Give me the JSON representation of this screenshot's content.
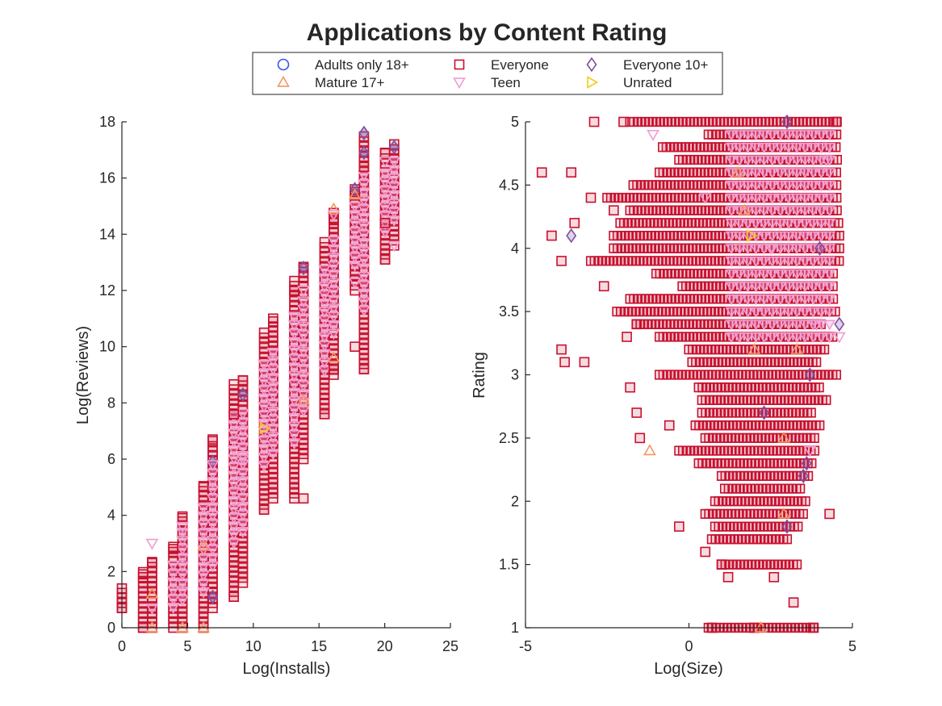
{
  "figure": {
    "title": "Applications by Content Rating"
  },
  "legend": {
    "placement": "top-center",
    "entries": [
      {
        "label": "Adults only 18+",
        "marker": "circle",
        "color": "#3355ee",
        "filled": false
      },
      {
        "label": "Everyone",
        "marker": "square",
        "color": "#c8102e",
        "filled": false
      },
      {
        "label": "Everyone 10+",
        "marker": "diamond",
        "color": "#7e4fa0",
        "filled": false
      },
      {
        "label": "Mature 17+",
        "marker": "triangle-up",
        "color": "#f4955a",
        "filled": false
      },
      {
        "label": "Teen",
        "marker": "triangle-down",
        "color": "#f29ad2",
        "filled": false
      },
      {
        "label": "Unrated",
        "marker": "triangle-right",
        "color": "#f2cc14",
        "filled": false
      }
    ]
  },
  "chart_data": [
    {
      "type": "scatter",
      "xlabel": "Log(Installs)",
      "ylabel": "Log(Reviews)",
      "xlim": [
        0,
        25
      ],
      "ylim": [
        0,
        18
      ],
      "xticks": [
        0,
        5,
        10,
        15,
        20,
        25
      ],
      "yticks": [
        0,
        2,
        4,
        6,
        8,
        10,
        12,
        14,
        16,
        18
      ],
      "grid": false,
      "x_columns": [
        0.0,
        1.61,
        2.3,
        3.91,
        4.61,
        6.21,
        6.91,
        8.52,
        9.21,
        10.82,
        11.51,
        13.12,
        13.82,
        15.42,
        16.12,
        17.73,
        18.42,
        20.03,
        20.72
      ],
      "column_ranges": [
        [
          0.7,
          1.4
        ],
        [
          0.0,
          2.0
        ],
        [
          0.0,
          2.4
        ],
        [
          0.0,
          2.9
        ],
        [
          0.0,
          4.0
        ],
        [
          0.0,
          5.1
        ],
        [
          0.7,
          6.7
        ],
        [
          1.1,
          8.8
        ],
        [
          1.6,
          8.9
        ],
        [
          4.2,
          10.5
        ],
        [
          4.6,
          11.0
        ],
        [
          4.6,
          12.5
        ],
        [
          6.0,
          12.9
        ],
        [
          7.6,
          13.8
        ],
        [
          9.0,
          14.9
        ],
        [
          12.0,
          15.6
        ],
        [
          9.2,
          17.6
        ],
        [
          13.1,
          17.0
        ],
        [
          13.6,
          17.2
        ]
      ],
      "series": [
        {
          "name": "Everyone",
          "points": [
            [
              0.0,
              0.7
            ],
            [
              0.0,
              1.4
            ],
            [
              1.61,
              0.0
            ],
            [
              1.61,
              1.9
            ],
            [
              2.3,
              2.3
            ],
            [
              2.3,
              0.7
            ],
            [
              3.91,
              2.8
            ],
            [
              4.61,
              3.9
            ],
            [
              6.21,
              5.0
            ],
            [
              6.91,
              6.7
            ],
            [
              8.52,
              1.1
            ],
            [
              8.52,
              7.6
            ],
            [
              9.21,
              8.8
            ],
            [
              10.82,
              4.2
            ],
            [
              11.51,
              11.0
            ],
            [
              13.12,
              12.0
            ],
            [
              13.82,
              4.6
            ],
            [
              13.82,
              12.8
            ],
            [
              15.42,
              7.6
            ],
            [
              16.12,
              9.2
            ],
            [
              16.12,
              14.5
            ],
            [
              17.73,
              10.0
            ],
            [
              17.73,
              15.5
            ],
            [
              18.42,
              9.2
            ],
            [
              18.42,
              16.4
            ],
            [
              20.03,
              13.1
            ],
            [
              20.03,
              14.4
            ],
            [
              20.03,
              16.9
            ]
          ]
        },
        {
          "name": "Everyone 10+",
          "points": [
            [
              6.91,
              1.1
            ],
            [
              6.91,
              5.9
            ],
            [
              9.21,
              8.3
            ],
            [
              13.82,
              12.8
            ],
            [
              17.73,
              15.6
            ],
            [
              18.42,
              17.6
            ],
            [
              18.42,
              16.9
            ],
            [
              20.72,
              17.1
            ]
          ]
        },
        {
          "name": "Mature 17+",
          "points": [
            [
              2.3,
              1.2
            ],
            [
              2.3,
              0.0
            ],
            [
              4.61,
              0.0
            ],
            [
              6.21,
              2.9
            ],
            [
              6.21,
              0.0
            ],
            [
              13.82,
              8.1
            ],
            [
              16.12,
              9.6
            ],
            [
              16.12,
              14.9
            ],
            [
              17.73,
              15.4
            ]
          ]
        },
        {
          "name": "Teen",
          "points": [
            [
              2.3,
              3.0
            ],
            [
              2.3,
              0.7
            ],
            [
              4.61,
              3.6
            ],
            [
              6.91,
              5.8
            ],
            [
              9.21,
              6.0
            ],
            [
              11.51,
              9.2
            ],
            [
              13.82,
              12.0
            ],
            [
              16.12,
              14.7
            ],
            [
              17.73,
              12.3
            ],
            [
              18.42,
              13.1
            ],
            [
              20.03,
              16.6
            ],
            [
              20.72,
              13.6
            ]
          ]
        },
        {
          "name": "Unrated",
          "points": [
            [
              10.82,
              7.1
            ]
          ]
        }
      ]
    },
    {
      "type": "scatter",
      "xlabel": "Log(Size)",
      "ylabel": "Rating",
      "xlim": [
        -5,
        5
      ],
      "ylim": [
        1,
        5
      ],
      "xticks": [
        -5,
        0,
        5
      ],
      "yticks": [
        1,
        1.5,
        2,
        2.5,
        3,
        3.5,
        4,
        4.5,
        5
      ],
      "grid": false,
      "series": [
        {
          "name": "Everyone",
          "points": [
            [
              -4.5,
              4.6
            ],
            [
              -3.6,
              4.6
            ],
            [
              -4.2,
              4.1
            ],
            [
              -3.9,
              3.9
            ],
            [
              -3.5,
              4.2
            ],
            [
              -3.0,
              4.4
            ],
            [
              -2.9,
              5.0
            ],
            [
              -2.6,
              3.7
            ],
            [
              -2.3,
              4.3
            ],
            [
              -2.0,
              5.0
            ],
            [
              -1.9,
              3.3
            ],
            [
              -1.8,
              2.9
            ],
            [
              -1.6,
              2.7
            ],
            [
              -1.5,
              2.5
            ],
            [
              -1.6,
              3.4
            ],
            [
              -3.9,
              3.2
            ],
            [
              -3.8,
              3.1
            ],
            [
              -3.2,
              3.1
            ],
            [
              -0.6,
              2.6
            ],
            [
              -0.3,
              1.8
            ],
            [
              0.5,
              1.6
            ],
            [
              0.7,
              1.0
            ],
            [
              1.0,
              1.5
            ],
            [
              1.2,
              1.4
            ],
            [
              2.0,
              1.0
            ],
            [
              2.6,
              1.4
            ],
            [
              3.2,
              1.2
            ],
            [
              3.8,
              1.0
            ],
            [
              4.3,
              1.9
            ],
            [
              4.5,
              5.0
            ]
          ]
        },
        {
          "name": "Everyone 10+",
          "points": [
            [
              -3.6,
              4.1
            ],
            [
              2.3,
              2.7
            ],
            [
              3.0,
              1.8
            ],
            [
              3.6,
              2.3
            ],
            [
              3.5,
              2.2
            ],
            [
              3.7,
              3.0
            ],
            [
              4.6,
              3.4
            ],
            [
              3.0,
              5.0
            ],
            [
              4.0,
              4.0
            ]
          ]
        },
        {
          "name": "Mature 17+",
          "points": [
            [
              -1.2,
              2.4
            ],
            [
              2.2,
              1.0
            ],
            [
              2.9,
              1.9
            ],
            [
              2.9,
              2.5
            ],
            [
              2.0,
              3.2
            ],
            [
              3.3,
              3.2
            ],
            [
              1.7,
              4.3
            ],
            [
              1.5,
              4.6
            ]
          ]
        },
        {
          "name": "Teen",
          "points": [
            [
              -1.1,
              4.9
            ],
            [
              3.7,
              2.4
            ],
            [
              3.9,
              3.4
            ],
            [
              4.6,
              3.3
            ],
            [
              0.5,
              4.4
            ],
            [
              2.5,
              4.0
            ],
            [
              4.2,
              4.7
            ]
          ]
        },
        {
          "name": "Unrated",
          "points": [
            [
              1.9,
              4.1
            ]
          ]
        }
      ],
      "everyone_rating_rows": [
        {
          "rating": 1.0,
          "from": 0.6,
          "to": 3.9
        },
        {
          "rating": 1.5,
          "from": 1.0,
          "to": 3.3
        },
        {
          "rating": 1.7,
          "from": 0.7,
          "to": 3.0
        },
        {
          "rating": 1.8,
          "from": 0.8,
          "to": 3.4
        },
        {
          "rating": 1.9,
          "from": 0.5,
          "to": 3.6
        },
        {
          "rating": 2.0,
          "from": 0.8,
          "to": 3.6
        },
        {
          "rating": 2.1,
          "from": 1.1,
          "to": 3.5
        },
        {
          "rating": 2.2,
          "from": 1.0,
          "to": 3.7
        },
        {
          "rating": 2.3,
          "from": 0.3,
          "to": 3.8
        },
        {
          "rating": 2.4,
          "from": -0.3,
          "to": 3.9
        },
        {
          "rating": 2.5,
          "from": 0.5,
          "to": 3.9
        },
        {
          "rating": 2.6,
          "from": 0.2,
          "to": 4.1
        },
        {
          "rating": 2.7,
          "from": 0.4,
          "to": 3.8
        },
        {
          "rating": 2.8,
          "from": 0.4,
          "to": 4.2
        },
        {
          "rating": 2.9,
          "from": 0.3,
          "to": 4.0
        },
        {
          "rating": 3.0,
          "from": -0.9,
          "to": 4.6
        },
        {
          "rating": 3.1,
          "from": 0.1,
          "to": 4.0
        },
        {
          "rating": 3.2,
          "from": 0.0,
          "to": 4.2
        },
        {
          "rating": 3.3,
          "from": -0.9,
          "to": 4.5
        },
        {
          "rating": 3.4,
          "from": -1.6,
          "to": 4.1
        },
        {
          "rating": 3.5,
          "from": -2.2,
          "to": 4.5
        },
        {
          "rating": 3.6,
          "from": -1.8,
          "to": 4.5
        },
        {
          "rating": 3.7,
          "from": -0.2,
          "to": 4.5
        },
        {
          "rating": 3.8,
          "from": -1.0,
          "to": 4.5
        },
        {
          "rating": 3.9,
          "from": -3.0,
          "to": 4.6
        },
        {
          "rating": 4.0,
          "from": -2.3,
          "to": 4.6
        },
        {
          "rating": 4.1,
          "from": -2.3,
          "to": 4.6
        },
        {
          "rating": 4.2,
          "from": -2.1,
          "to": 4.6
        },
        {
          "rating": 4.3,
          "from": -1.8,
          "to": 4.6
        },
        {
          "rating": 4.4,
          "from": -2.5,
          "to": 4.6
        },
        {
          "rating": 4.5,
          "from": -1.7,
          "to": 4.6
        },
        {
          "rating": 4.6,
          "from": -0.9,
          "to": 4.6
        },
        {
          "rating": 4.7,
          "from": -0.3,
          "to": 4.6
        },
        {
          "rating": 4.8,
          "from": -0.8,
          "to": 4.6
        },
        {
          "rating": 4.9,
          "from": 0.6,
          "to": 4.6
        },
        {
          "rating": 5.0,
          "from": -1.8,
          "to": 4.6
        }
      ]
    }
  ]
}
